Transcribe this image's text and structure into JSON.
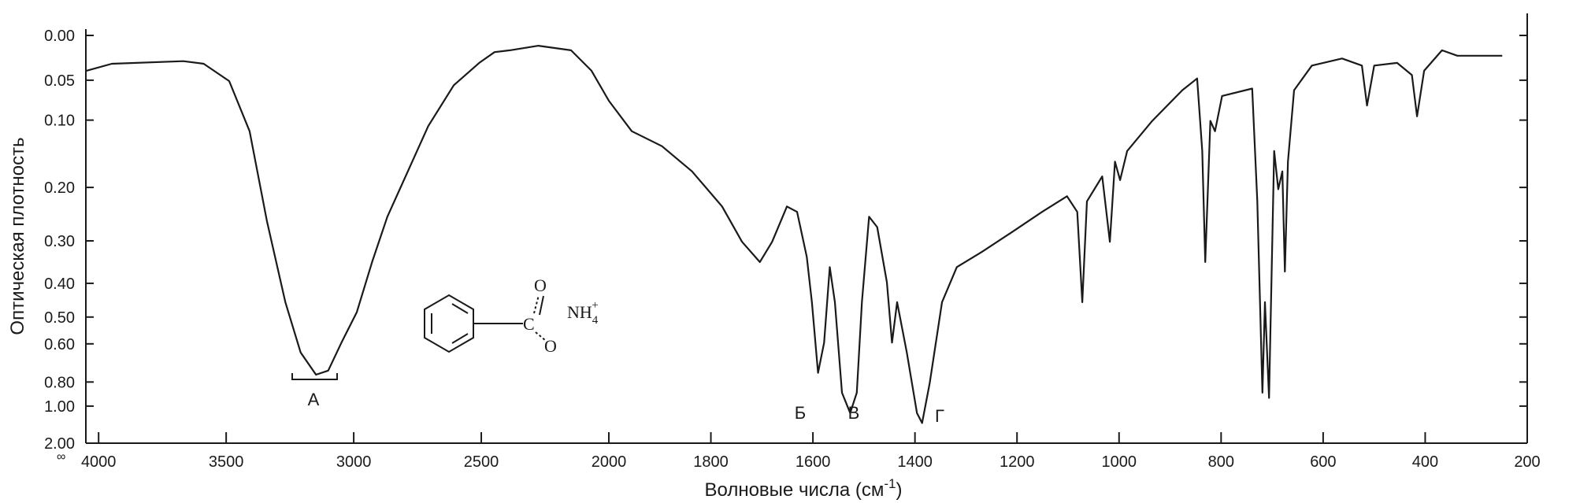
{
  "chart_data": {
    "type": "line",
    "ylabel": "Оптическая плотность",
    "xlabel": [
      "Волновые числа (см",
      "-1",
      ")"
    ],
    "corner_label": "∞",
    "color": "#1a1a1a",
    "xlim": [
      4050,
      200
    ],
    "x_break": 2000,
    "xticks": [
      4000,
      3500,
      3000,
      2500,
      2000,
      1800,
      1600,
      1400,
      1200,
      1000,
      800,
      600,
      400,
      200
    ],
    "ylim": [
      0,
      2
    ],
    "yscale": "transmittance",
    "yticks": [
      {
        "value": 0,
        "label": "0.00"
      },
      {
        "value": 0.05,
        "label": "0.05"
      },
      {
        "value": 0.1,
        "label": "0.10"
      },
      {
        "value": 0.2,
        "label": "0.20"
      },
      {
        "value": 0.3,
        "label": "0.30"
      },
      {
        "value": 0.4,
        "label": "0.40"
      },
      {
        "value": 0.5,
        "label": "0.50"
      },
      {
        "value": 0.6,
        "label": "0.60"
      },
      {
        "value": 0.8,
        "label": "0.80"
      },
      {
        "value": 1,
        "label": "1.00"
      },
      {
        "value": 2,
        "label": "2.00"
      }
    ],
    "x": [
      4048,
      3948,
      3668,
      3588,
      3488,
      3408,
      3340,
      3268,
      3208,
      3148,
      3100,
      3048,
      2988,
      2928,
      2868,
      2788,
      2708,
      2608,
      2508,
      2448,
      2388,
      2276,
      2148,
      2068,
      2000,
      1955,
      1896,
      1837,
      1778,
      1739,
      1704,
      1680,
      1651,
      1631,
      1612,
      1602,
      1590,
      1578,
      1567,
      1557,
      1543,
      1527,
      1514,
      1504,
      1490,
      1474,
      1455,
      1445,
      1435,
      1416,
      1396,
      1386,
      1371,
      1347,
      1318,
      1269,
      1210,
      1151,
      1102,
      1082,
      1072,
      1063,
      1033,
      1018,
      1008,
      998,
      984,
      935,
      876,
      847,
      837,
      831,
      821,
      812,
      798,
      739,
      729,
      719,
      714,
      706,
      696,
      688,
      680,
      675,
      669,
      657,
      622,
      563,
      524,
      514,
      500,
      455,
      426,
      416,
      402,
      367,
      337,
      249
    ],
    "values": [
      0.039,
      0.031,
      0.028,
      0.031,
      0.051,
      0.115,
      0.261,
      0.453,
      0.638,
      0.754,
      0.73,
      0.595,
      0.484,
      0.347,
      0.252,
      0.174,
      0.108,
      0.056,
      0.03,
      0.018,
      0.016,
      0.011,
      0.016,
      0.039,
      0.075,
      0.115,
      0.136,
      0.174,
      0.233,
      0.302,
      0.347,
      0.302,
      0.233,
      0.243,
      0.335,
      0.453,
      0.743,
      0.595,
      0.359,
      0.453,
      0.878,
      1.08,
      0.878,
      0.453,
      0.252,
      0.272,
      0.397,
      0.595,
      0.453,
      0.638,
      1.08,
      1.23,
      0.807,
      0.453,
      0.359,
      0.324,
      0.282,
      0.243,
      0.215,
      0.243,
      0.453,
      0.224,
      0.182,
      0.302,
      0.159,
      0.188,
      0.143,
      0.101,
      0.062,
      0.048,
      0.143,
      0.347,
      0.101,
      0.115,
      0.069,
      0.06,
      0.224,
      0.878,
      0.453,
      0.921,
      0.143,
      0.203,
      0.174,
      0.37,
      0.159,
      0.062,
      0.033,
      0.025,
      0.033,
      0.081,
      0.033,
      0.03,
      0.044,
      0.095,
      0.039,
      0.016,
      0.022,
      0.022
    ],
    "annotations": [
      "А",
      "Б",
      "В",
      "Г"
    ],
    "molecule": {
      "carbon": "C",
      "oxygen_top": "O",
      "oxygen_bottom": "O",
      "ion": "NH",
      "ion_sub": "4",
      "ion_sup": "+"
    }
  }
}
